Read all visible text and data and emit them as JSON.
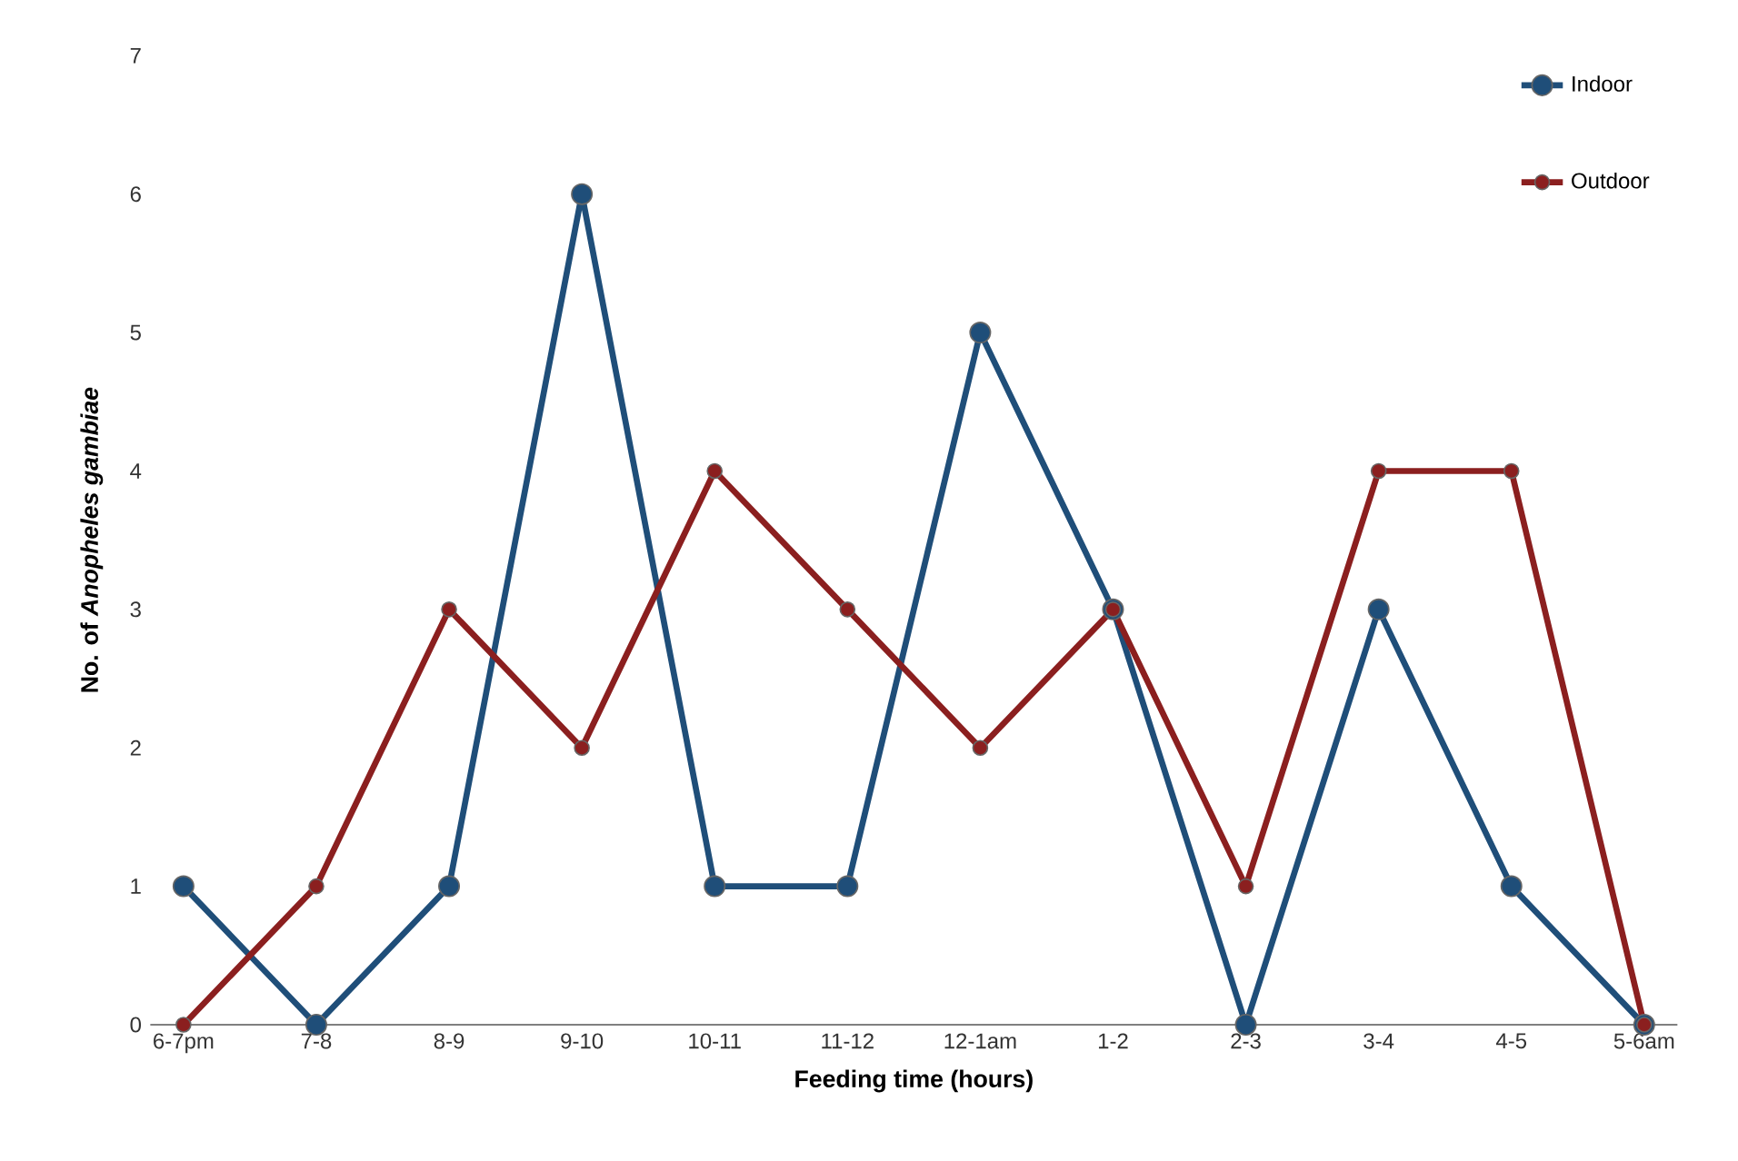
{
  "chart_data": {
    "type": "line",
    "xlabel": "Feeding time (hours)",
    "ylabel": "No. of *Anopheles gambiae*",
    "categories": [
      "6-7pm",
      "7-8",
      "8-9",
      "9-10",
      "10-11",
      "11-12",
      "12-1am",
      "1-2",
      "2-3",
      "3-4",
      "4-5",
      "5-6am"
    ],
    "series": [
      {
        "name": "Indoor",
        "color": "#1f4e79",
        "values": [
          1,
          0,
          1,
          6,
          1,
          1,
          5,
          3,
          0,
          3,
          1,
          0
        ]
      },
      {
        "name": "Outdoor",
        "color": "#8b1f1f",
        "values": [
          0,
          1,
          3,
          2,
          4,
          3,
          2,
          3,
          1,
          4,
          4,
          0
        ]
      }
    ],
    "ylim": [
      0,
      7
    ],
    "yticks": [
      0,
      1,
      2,
      3,
      4,
      5,
      6,
      7
    ],
    "grid": false,
    "legend": "top right",
    "marker": "circle",
    "line_style": "solid"
  }
}
